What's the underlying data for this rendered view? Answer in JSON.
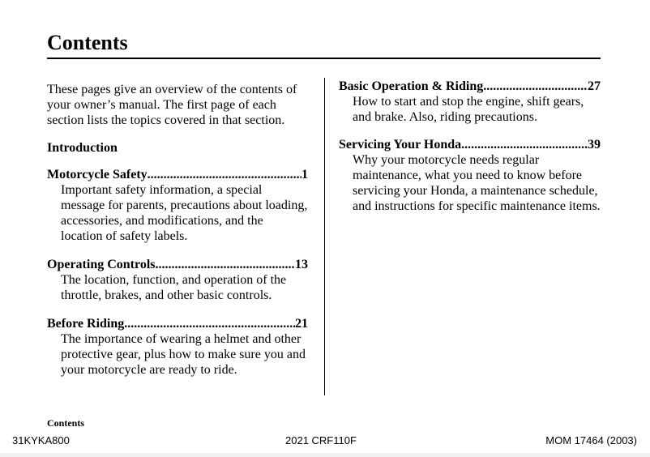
{
  "page": {
    "title": "Contents",
    "intro_paragraph": "These pages give an overview of the contents of your owner’s manual. The first page of each section lists the topics covered in that section.",
    "intro_heading": "Introduction",
    "left_entries": [
      {
        "title": "Motorcycle Safety",
        "page": "1",
        "description": "Important safety information, a special message for parents, precautions about loading, accessories, and modifications, and the location of safety labels."
      },
      {
        "title": "Operating Controls",
        "page": "13",
        "description": "The location, function, and operation of the throttle, brakes, and other basic controls."
      },
      {
        "title": "Before Riding",
        "page": "21",
        "description": "The importance of wearing a helmet and other protective gear, plus how to make sure you and your motorcycle are ready to ride."
      }
    ],
    "right_entries": [
      {
        "title": "Basic Operation & Riding",
        "page": "27",
        "description": "How to start and stop the engine, shift gears, and brake. Also, riding precautions."
      },
      {
        "title": "Servicing Your Honda",
        "page": "39",
        "description": "Why your motorcycle needs regular maintenance, what you need to know before servicing your Honda, a maintenance schedule, and instructions for specific maintenance items."
      }
    ]
  },
  "footer": {
    "section_label": "Contents",
    "code": "31KYKA800",
    "model": "2021 CRF110F",
    "doc_id": "MOM 17464 (2003)"
  }
}
